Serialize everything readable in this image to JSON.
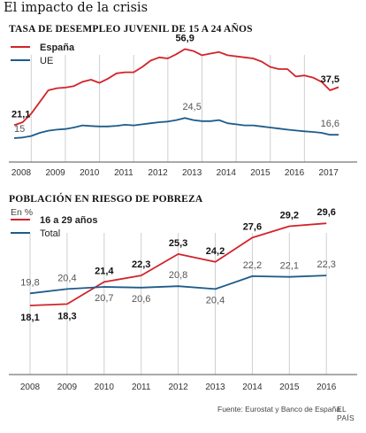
{
  "header": {
    "title": "El impacto de la crisis"
  },
  "footer": {
    "source": "Fuente: Eurostat y Banco de España.",
    "brand": "EL PAÍS"
  },
  "colors": {
    "red": "#d2232a",
    "blue": "#1e5b8a",
    "grid": "#cfcfcf",
    "axis": "#555555"
  },
  "chart_data": [
    {
      "type": "line",
      "title": "TASA DE DESEMPLEO JUVENIL DE 15 A 24 AÑOS",
      "x_tick_labels": [
        "2008",
        "2009",
        "2010",
        "2011",
        "2012",
        "2013",
        "2014",
        "2015",
        "2016",
        "2017"
      ],
      "xlim": [
        2008.0,
        2017.5
      ],
      "ylim": [
        10,
        60
      ],
      "legend": "top-left",
      "grid": "vertical",
      "series": [
        {
          "name": "España",
          "color": "#d2232a",
          "x": [
            2008.0,
            2008.25,
            2008.5,
            2008.75,
            2009.0,
            2009.25,
            2009.5,
            2009.75,
            2010.0,
            2010.25,
            2010.5,
            2010.75,
            2011.0,
            2011.25,
            2011.5,
            2011.75,
            2012.0,
            2012.25,
            2012.5,
            2012.75,
            2013.0,
            2013.25,
            2013.5,
            2013.75,
            2014.0,
            2014.25,
            2014.5,
            2014.75,
            2015.0,
            2015.25,
            2015.5,
            2015.75,
            2016.0,
            2016.25,
            2016.5,
            2016.75,
            2017.0,
            2017.25,
            2017.5
          ],
          "values": [
            21.1,
            22.5,
            26.5,
            32.0,
            37.5,
            38.5,
            38.8,
            39.5,
            41.5,
            42.5,
            41.0,
            43.0,
            45.5,
            46.0,
            46.0,
            48.5,
            51.5,
            53.0,
            52.5,
            54.5,
            56.9,
            56.0,
            54.0,
            54.8,
            55.5,
            54.0,
            53.5,
            53.0,
            52.5,
            51.0,
            48.5,
            47.5,
            47.5,
            44.0,
            44.5,
            43.5,
            41.5,
            37.5,
            39.0
          ],
          "labels": [
            {
              "x": 2008.0,
              "text": "21,1"
            },
            {
              "x": 2013.0,
              "text": "56,9"
            },
            {
              "x": 2017.25,
              "text": "37,5"
            }
          ]
        },
        {
          "name": "UE",
          "color": "#1e5b8a",
          "x": [
            2008.0,
            2008.25,
            2008.5,
            2008.75,
            2009.0,
            2009.25,
            2009.5,
            2009.75,
            2010.0,
            2010.25,
            2010.5,
            2010.75,
            2011.0,
            2011.25,
            2011.5,
            2011.75,
            2012.0,
            2012.25,
            2012.5,
            2012.75,
            2013.0,
            2013.25,
            2013.5,
            2013.75,
            2014.0,
            2014.25,
            2014.5,
            2014.75,
            2015.0,
            2015.25,
            2015.5,
            2015.75,
            2016.0,
            2016.25,
            2016.5,
            2016.75,
            2017.0,
            2017.25,
            2017.5
          ],
          "values": [
            15.0,
            15.3,
            16.0,
            17.5,
            18.5,
            19.0,
            19.3,
            20.0,
            21.0,
            20.7,
            20.5,
            20.5,
            20.8,
            21.3,
            21.0,
            21.5,
            22.0,
            22.5,
            22.8,
            23.5,
            24.5,
            23.5,
            23.0,
            23.0,
            23.5,
            22.0,
            21.5,
            21.0,
            21.0,
            20.5,
            20.0,
            19.5,
            19.0,
            18.6,
            18.2,
            17.9,
            17.5,
            16.6,
            16.6
          ],
          "labels": [
            {
              "x": 2008.0,
              "text": "15"
            },
            {
              "x": 2013.0,
              "text": "24,5"
            },
            {
              "x": 2017.25,
              "text": "16,6"
            }
          ]
        }
      ]
    },
    {
      "type": "line",
      "title": "POBLACIÓN EN RIESGO DE POBREZA",
      "ylabel": "En %",
      "categories": [
        "2008",
        "2009",
        "2010",
        "2011",
        "2012",
        "2013",
        "2014",
        "2015",
        "2016"
      ],
      "ylim": [
        15,
        30
      ],
      "legend": "top-left",
      "grid": "vertical",
      "series": [
        {
          "name": "16 a 29 años",
          "color": "#d2232a",
          "values": [
            18.1,
            18.3,
            21.4,
            22.3,
            25.3,
            24.2,
            27.6,
            29.2,
            29.6
          ],
          "labels": [
            "18,1",
            "18,3",
            "21,4",
            "22,3",
            "25,3",
            "24,2",
            "27,6",
            "29,2",
            "29,6"
          ]
        },
        {
          "name": "Total",
          "color": "#1e5b8a",
          "values": [
            19.8,
            20.4,
            20.7,
            20.6,
            20.8,
            20.4,
            22.2,
            22.1,
            22.3
          ],
          "labels": [
            "19,8",
            "20,4",
            "20,7",
            "20,6",
            "20,8",
            "20,4",
            "22,2",
            "22,1",
            "22,3"
          ]
        }
      ]
    }
  ]
}
